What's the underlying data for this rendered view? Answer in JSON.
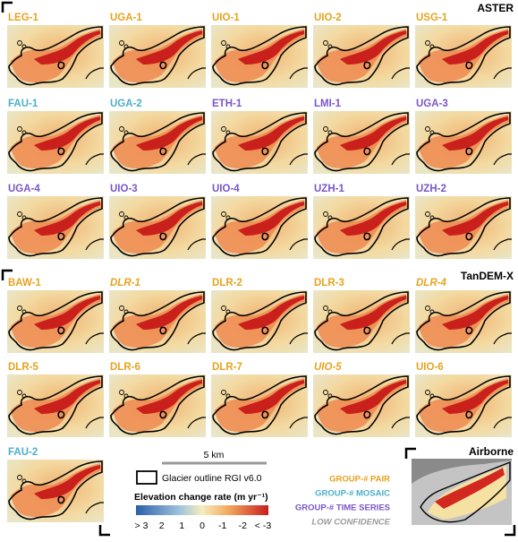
{
  "sections": [
    {
      "title": "ASTER",
      "panels": [
        {
          "label": "LEG-1",
          "color": "#e6a31e"
        },
        {
          "label": "UGA-1",
          "color": "#e6a31e"
        },
        {
          "label": "UIO-1",
          "color": "#e6a31e"
        },
        {
          "label": "UIO-2",
          "color": "#e6a31e"
        },
        {
          "label": "USG-1",
          "color": "#e6a31e"
        },
        {
          "label": "FAU-1",
          "color": "#4bb0c6"
        },
        {
          "label": "UGA-2",
          "color": "#4bb0c6"
        },
        {
          "label": "ETH-1",
          "color": "#7a55c8"
        },
        {
          "label": "LMI-1",
          "color": "#7a55c8"
        },
        {
          "label": "UGA-3",
          "color": "#7a55c8"
        },
        {
          "label": "UGA-4",
          "color": "#7a55c8"
        },
        {
          "label": "UIO-3",
          "color": "#7a55c8"
        },
        {
          "label": "UIO-4",
          "color": "#7a55c8"
        },
        {
          "label": "UZH-1",
          "color": "#7a55c8"
        },
        {
          "label": "UZH-2",
          "color": "#7a55c8"
        }
      ]
    },
    {
      "title": "TanDEM-X",
      "panels": [
        {
          "label": "BAW-1",
          "color": "#e6a31e"
        },
        {
          "label": "DLR-1",
          "color": "#e6a31e",
          "italic": true
        },
        {
          "label": "DLR-2",
          "color": "#e6a31e"
        },
        {
          "label": "DLR-3",
          "color": "#e6a31e"
        },
        {
          "label": "DLR-4",
          "color": "#e6a31e",
          "italic": true
        },
        {
          "label": "DLR-5",
          "color": "#e6a31e"
        },
        {
          "label": "DLR-6",
          "color": "#e6a31e"
        },
        {
          "label": "DLR-7",
          "color": "#e6a31e"
        },
        {
          "label": "UIO-5",
          "color": "#e6a31e",
          "italic": true
        },
        {
          "label": "UIO-6",
          "color": "#e6a31e"
        },
        {
          "label": "FAU-2",
          "color": "#4bb0c6"
        }
      ]
    },
    {
      "title": "Airborne"
    }
  ],
  "legend": {
    "scale_bar": "5 km",
    "outline": "Glacier outline RGI v6.0",
    "colorbar_title": "Elevation change rate (m yr⁻¹)",
    "colorbar_labels": [
      "> 3",
      "2",
      "1",
      "0",
      "-1",
      "-2",
      "< -3"
    ],
    "groups": [
      {
        "label": "GROUP-# PAIR",
        "color": "#e6a31e"
      },
      {
        "label": "GROUP-# MOSAIC",
        "color": "#4bb0c6"
      },
      {
        "label": "GROUP-# TIME SERIES",
        "color": "#7a55c8"
      },
      {
        "label": "LOW CONFIDENCE",
        "color": "#9a9a9a",
        "italic": true
      }
    ]
  }
}
